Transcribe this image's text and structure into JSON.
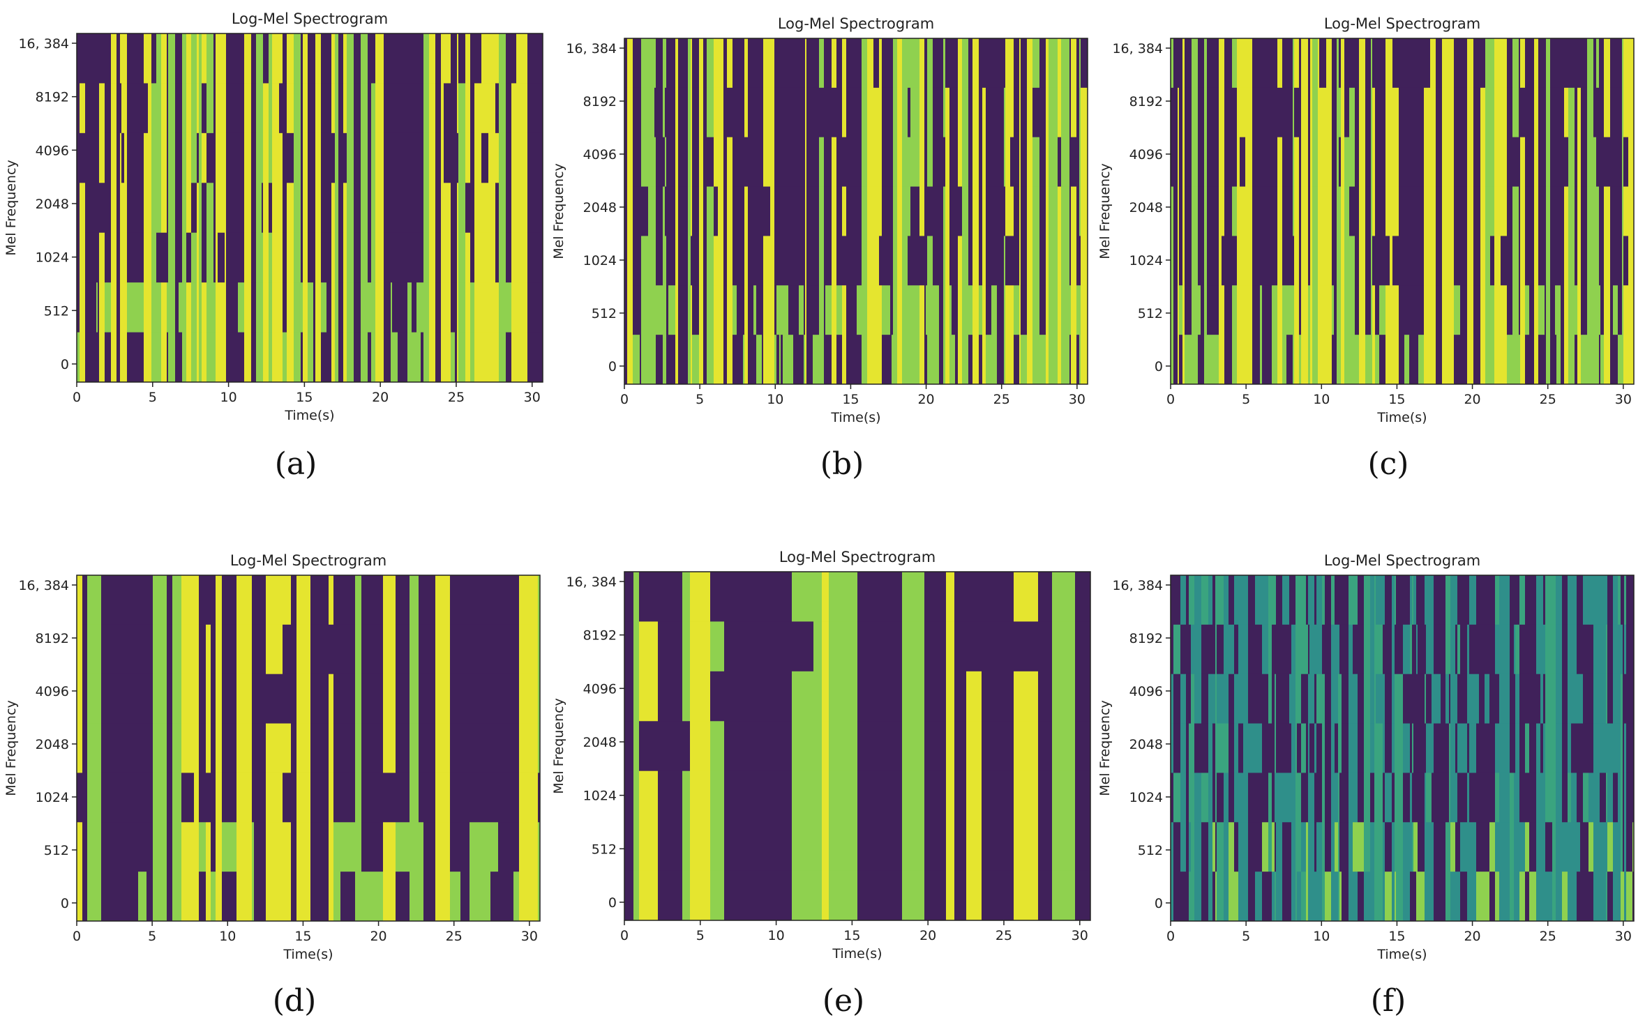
{
  "figure": {
    "panels": [
      {
        "id": "a",
        "label": "(a)"
      },
      {
        "id": "b",
        "label": "(b)"
      },
      {
        "id": "c",
        "label": "(c)"
      },
      {
        "id": "d",
        "label": "(d)"
      },
      {
        "id": "e",
        "label": "(e)"
      },
      {
        "id": "f",
        "label": "(f)"
      }
    ]
  },
  "colors": {
    "dark": "#40215a",
    "mid": "#2f8f8a",
    "green": "#8fd14f",
    "yellow": "#e5e52f",
    "frame": "#222222",
    "text": "#222222"
  },
  "chart_data": [
    {
      "type": "heatmap",
      "panel": "a",
      "title": "Log-Mel Spectrogram",
      "xlabel": "Time(s)",
      "ylabel": "Mel Frequency",
      "xlim": [
        0,
        30.7
      ],
      "x_ticks": [
        0,
        5,
        10,
        15,
        20,
        25,
        30
      ],
      "x_tick_labels": [
        "0",
        "5",
        "10",
        "15",
        "20",
        "25",
        "30"
      ],
      "y_tick_labels": [
        "16, 384",
        "8192",
        "4096",
        "2048",
        "1024",
        "512",
        "0"
      ],
      "style": "yellow-dense",
      "seed": 11
    },
    {
      "type": "heatmap",
      "panel": "b",
      "title": "Log-Mel Spectrogram",
      "xlabel": "Time(s)",
      "ylabel": "Mel Frequency",
      "xlim": [
        0,
        30.7
      ],
      "x_ticks": [
        0,
        5,
        10,
        15,
        20,
        25,
        30
      ],
      "x_tick_labels": [
        "0",
        "5",
        "10",
        "15",
        "20",
        "25",
        "30"
      ],
      "y_tick_labels": [
        "16, 384",
        "8192",
        "4096",
        "2048",
        "1024",
        "512",
        "0"
      ],
      "style": "mixed",
      "seed": 23
    },
    {
      "type": "heatmap",
      "panel": "c",
      "title": "Log-Mel Spectrogram",
      "xlabel": "Time(s)",
      "ylabel": "Mel Frequency",
      "xlim": [
        0,
        30.7
      ],
      "x_ticks": [
        0,
        5,
        10,
        15,
        20,
        25,
        30
      ],
      "x_tick_labels": [
        "0",
        "5",
        "10",
        "15",
        "20",
        "25",
        "30"
      ],
      "y_tick_labels": [
        "16, 384",
        "8192",
        "4096",
        "2048",
        "1024",
        "512",
        "0"
      ],
      "style": "mixed",
      "seed": 37
    },
    {
      "type": "heatmap",
      "panel": "d",
      "title": "Log-Mel Spectrogram",
      "xlabel": "Time(s)",
      "ylabel": "Mel Frequency",
      "xlim": [
        0,
        30.7
      ],
      "x_ticks": [
        0,
        5,
        10,
        15,
        20,
        25,
        30
      ],
      "x_tick_labels": [
        "0",
        "5",
        "10",
        "15",
        "20",
        "25",
        "30"
      ],
      "y_tick_labels": [
        "16, 384",
        "8192",
        "4096",
        "2048",
        "1024",
        "512",
        "0"
      ],
      "style": "blocky",
      "seed": 41
    },
    {
      "type": "heatmap",
      "panel": "e",
      "title": "Log-Mel Spectrogram",
      "xlabel": "Time(s)",
      "ylabel": "Mel Frequency",
      "xlim": [
        0,
        30.7
      ],
      "x_ticks": [
        0,
        5,
        10,
        15,
        20,
        25,
        30
      ],
      "x_tick_labels": [
        "0",
        "5",
        "10",
        "15",
        "20",
        "25",
        "30"
      ],
      "y_tick_labels": [
        "16, 384",
        "8192",
        "4096",
        "2048",
        "1024",
        "512",
        "0"
      ],
      "style": "large-blocks",
      "seed": 53
    },
    {
      "type": "heatmap",
      "panel": "f",
      "title": "Log-Mel Spectrogram",
      "xlabel": "Time(s)",
      "ylabel": "Mel Frequency",
      "xlim": [
        0,
        30.7
      ],
      "x_ticks": [
        0,
        5,
        10,
        15,
        20,
        25,
        30
      ],
      "x_tick_labels": [
        "0",
        "5",
        "10",
        "15",
        "20",
        "25",
        "30"
      ],
      "y_tick_labels": [
        "16, 384",
        "8192",
        "4096",
        "2048",
        "1024",
        "512",
        "0"
      ],
      "style": "teal",
      "seed": 67
    }
  ]
}
